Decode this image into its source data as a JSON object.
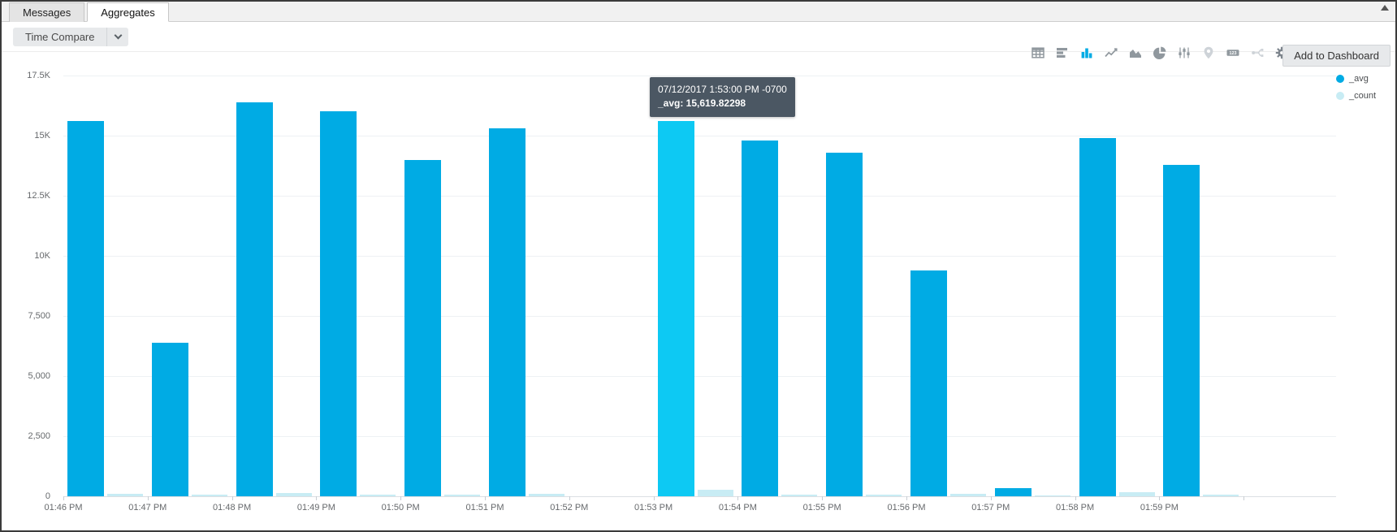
{
  "tabs": [
    {
      "label": "Messages",
      "active": false
    },
    {
      "label": "Aggregates",
      "active": true
    }
  ],
  "toolbar": {
    "time_compare_label": "Time Compare",
    "add_to_dashboard_label": "Add to Dashboard",
    "icons": [
      {
        "name": "table-icon",
        "state": "normal"
      },
      {
        "name": "bar-chart-horizontal-icon",
        "state": "normal"
      },
      {
        "name": "bar-chart-vertical-icon",
        "state": "active"
      },
      {
        "name": "line-chart-icon",
        "state": "normal"
      },
      {
        "name": "area-chart-icon",
        "state": "normal"
      },
      {
        "name": "pie-chart-icon",
        "state": "normal"
      },
      {
        "name": "box-plot-icon",
        "state": "normal"
      },
      {
        "name": "map-pin-icon",
        "state": "disabled"
      },
      {
        "name": "single-value-icon",
        "state": "normal"
      },
      {
        "name": "transaction-icon",
        "state": "disabled"
      },
      {
        "name": "settings-gear-icon",
        "state": "dark"
      }
    ],
    "misc_icons": [
      "chevron-down-icon",
      "scroll-up-icon"
    ]
  },
  "colors": {
    "avg_bar": "#00abe4",
    "avg_bar_highlight": "#0dc9f3",
    "count_bar": "#c8ecf4",
    "tooltip_bg": "#4b5763",
    "icon_active": "#00abe4"
  },
  "tooltip": {
    "line1": "07/12/2017 1:53:00 PM -0700",
    "line2": "_avg: 15,619.82298"
  },
  "legend": [
    {
      "label": "_avg",
      "color": "#00abe4"
    },
    {
      "label": "_count",
      "color": "#c8ecf4"
    }
  ],
  "chart_data": {
    "type": "bar",
    "title": "",
    "xlabel": "",
    "ylabel": "",
    "categories": [
      "01:46 PM",
      "01:47 PM",
      "01:48 PM",
      "01:49 PM",
      "01:50 PM",
      "01:51 PM",
      "01:52 PM",
      "01:53 PM",
      "01:54 PM",
      "01:55 PM",
      "01:56 PM",
      "01:57 PM",
      "01:58 PM",
      "01:59 PM"
    ],
    "series": [
      {
        "name": "_avg",
        "color": "#00abe4",
        "values": [
          15600,
          6400,
          16400,
          16000,
          14000,
          15300,
          null,
          15619.82298,
          14800,
          14300,
          9400,
          350,
          14900,
          13800
        ]
      },
      {
        "name": "_count",
        "color": "#c8ecf4",
        "values": [
          100,
          60,
          150,
          70,
          70,
          100,
          null,
          280,
          70,
          70,
          100,
          50,
          170,
          70
        ]
      }
    ],
    "highlight": {
      "series": "_avg",
      "category_index": 7,
      "value_label": "15,619.82298"
    },
    "y_tick_values": [
      0,
      2500,
      5000,
      7500,
      10000,
      12500,
      15000,
      17500
    ],
    "y_ticks": [
      "0",
      "2,500",
      "5,000",
      "7,500",
      "10K",
      "12.5K",
      "15K",
      "17.5K"
    ],
    "ylim": [
      0,
      17500
    ],
    "grid": "horizontal",
    "legend_position": "top-right"
  }
}
